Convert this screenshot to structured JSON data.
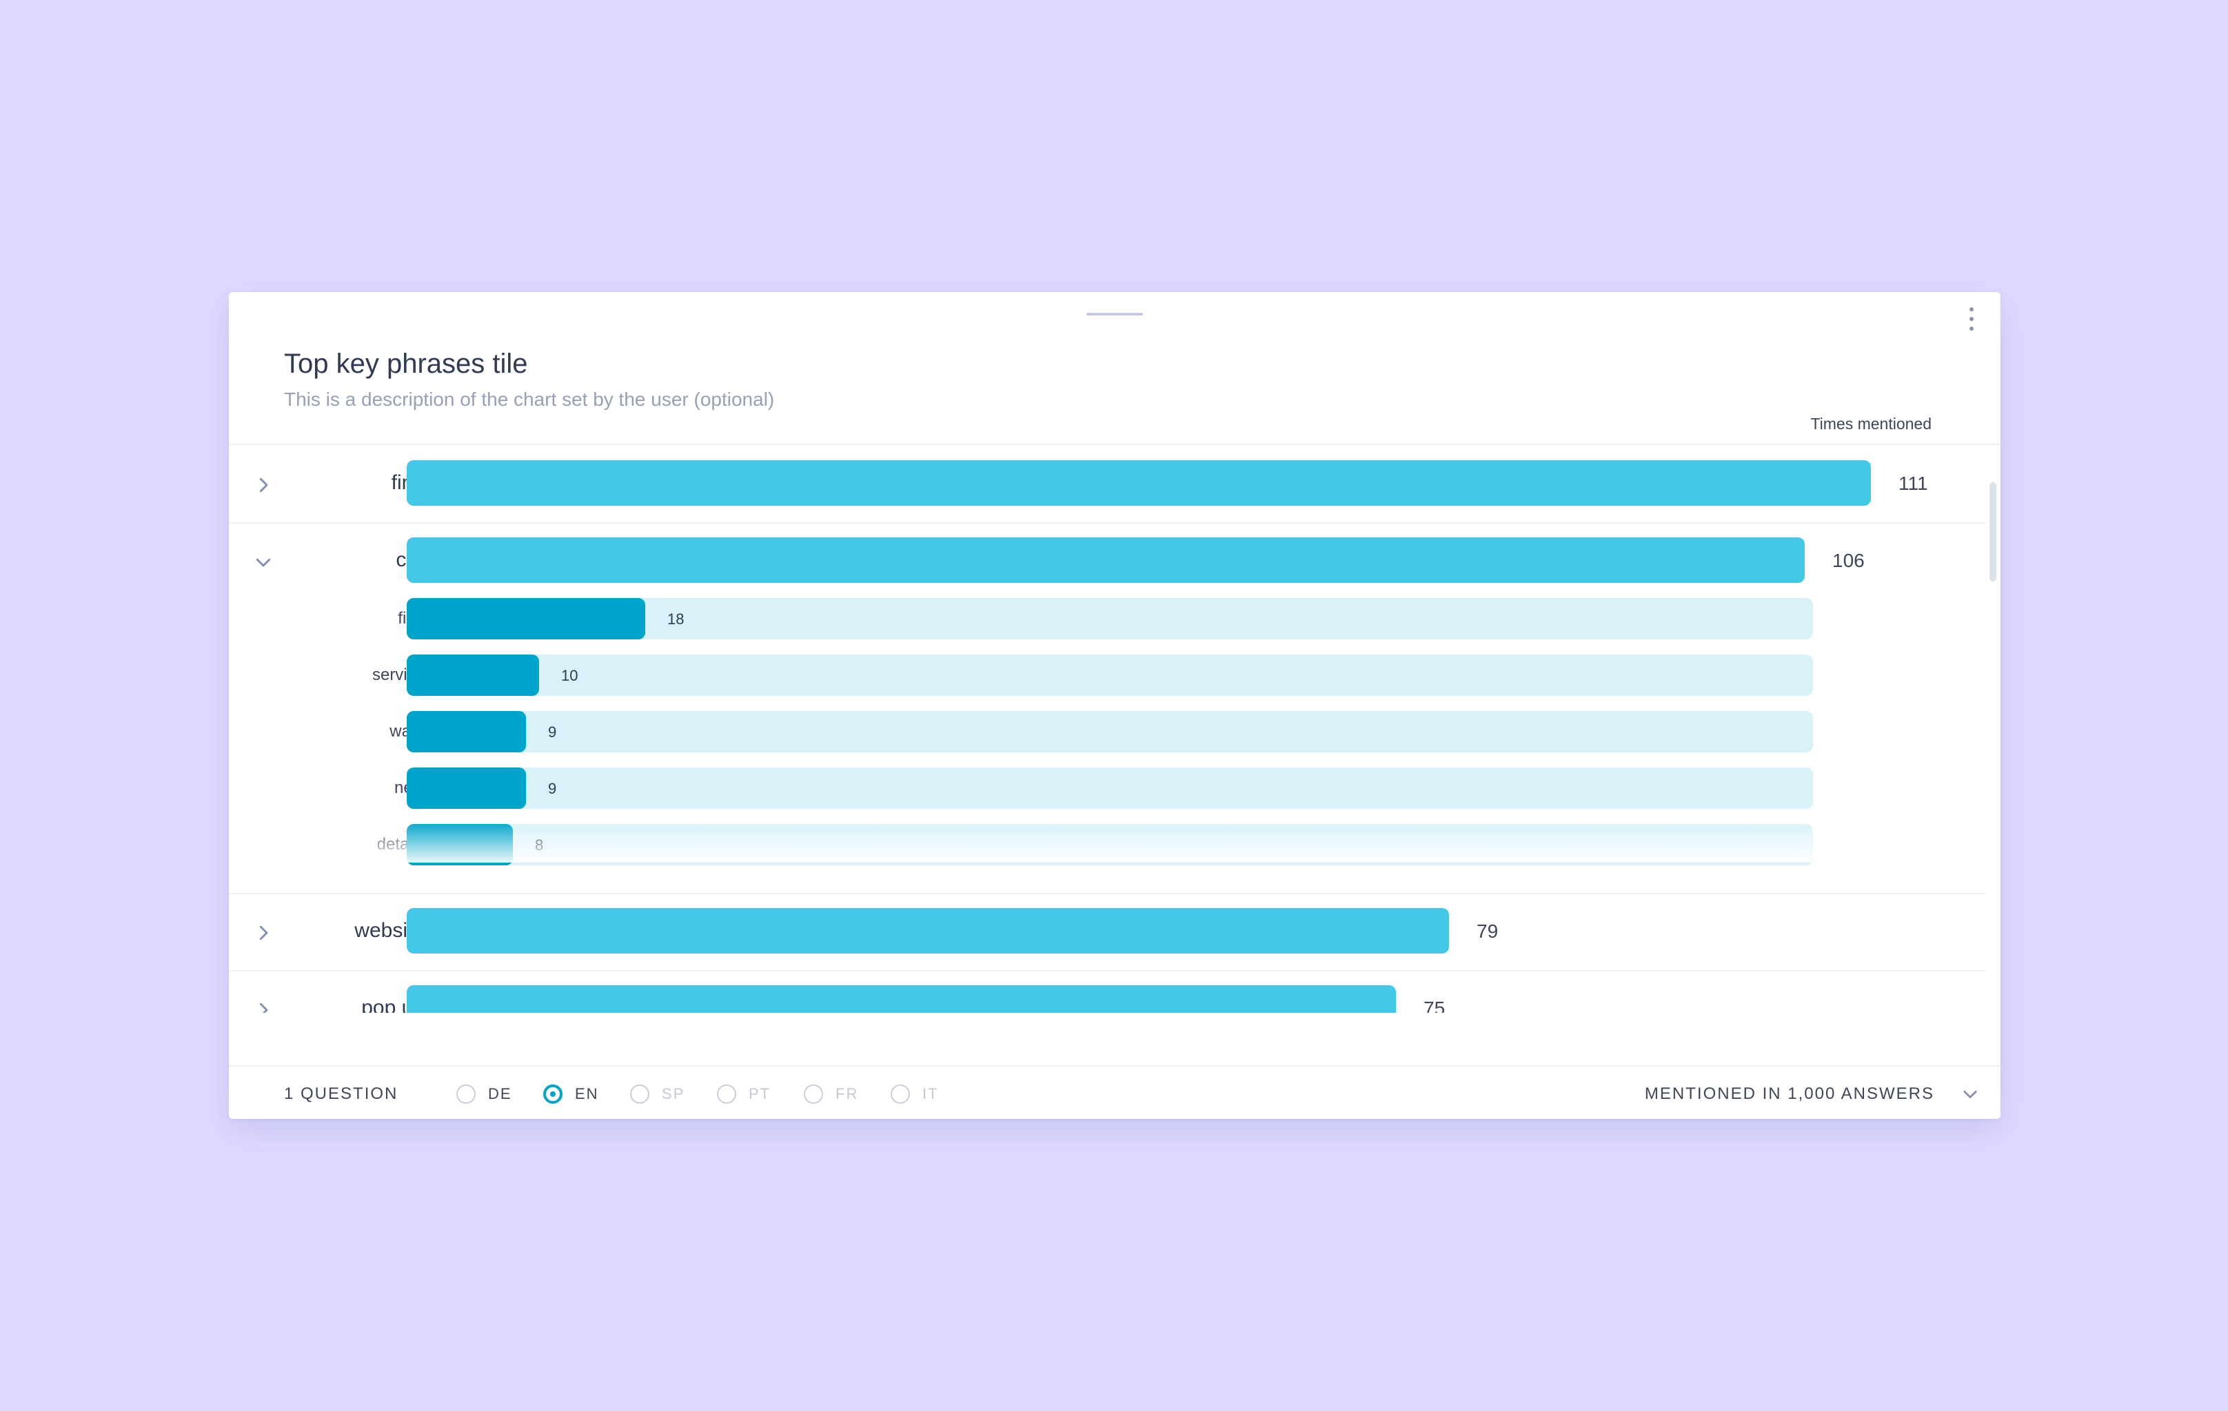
{
  "tile": {
    "title": "Top key phrases tile",
    "description": "This is a description of the chart set by the user (optional)",
    "column_header": "Times mentioned",
    "menu_icon": "vertical-dots-icon",
    "drag_icon": "drag-handle-icon"
  },
  "colors": {
    "primary_bar": "#44c8e8",
    "sub_bar": "#00a5cb",
    "sub_track": "#d9f2fa",
    "background": "#dedaff"
  },
  "chart_data": {
    "type": "bar",
    "orientation": "horizontal",
    "title": "Top key phrases tile",
    "xlabel": "Times mentioned",
    "xlim": [
      0,
      111
    ],
    "categories": [
      "find",
      "car",
      "website",
      "pop up"
    ],
    "values": [
      111,
      106,
      79,
      75
    ],
    "expanded": {
      "parent": "car",
      "categories": [
        "find",
        "service",
        "want",
        "new",
        "details"
      ],
      "values": [
        18,
        10,
        9,
        9,
        8
      ]
    }
  },
  "footer": {
    "questions": "1 QUESTION",
    "languages": [
      {
        "code": "DE",
        "selected": false,
        "enabled": true
      },
      {
        "code": "EN",
        "selected": true,
        "enabled": true
      },
      {
        "code": "SP",
        "selected": false,
        "enabled": false
      },
      {
        "code": "PT",
        "selected": false,
        "enabled": false
      },
      {
        "code": "FR",
        "selected": false,
        "enabled": false
      },
      {
        "code": "IT",
        "selected": false,
        "enabled": false
      }
    ],
    "mentioned": "MENTIONED IN 1,000 ANSWERS"
  }
}
